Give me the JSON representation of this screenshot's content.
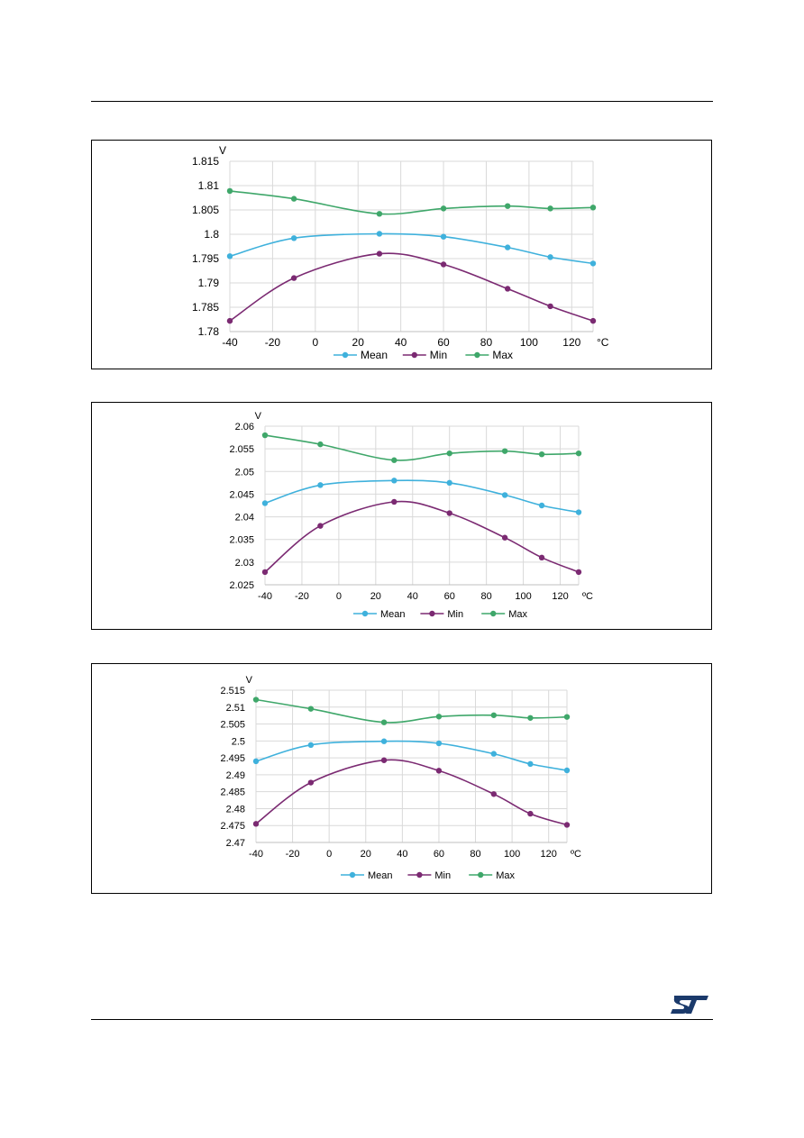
{
  "brand_color": "#1b3a6b",
  "logo_text": "ST",
  "colors": {
    "mean": "#3fb1dc",
    "min": "#7b2a72",
    "max": "#3fa76a",
    "grid": "#d9d9d9"
  },
  "chart_data": [
    {
      "type": "line",
      "ylabel": "V",
      "xlabel": "°C",
      "xlim": [
        -40,
        130
      ],
      "ylim": [
        1.78,
        1.815
      ],
      "xticks": [
        -40,
        -20,
        0,
        20,
        40,
        60,
        80,
        100,
        120
      ],
      "xtick_labels": [
        "-40",
        "-20",
        "0",
        "20",
        "40",
        "60",
        "80",
        "100",
        "120"
      ],
      "yticks": [
        1.78,
        1.785,
        1.79,
        1.795,
        1.8,
        1.805,
        1.81,
        1.815
      ],
      "ytick_labels": [
        "1.78",
        "1.785",
        "1.79",
        "1.795",
        "1.8",
        "1.805",
        "1.81",
        "1.815"
      ],
      "grid": true,
      "legend": "bottom",
      "x": [
        -40,
        -10,
        30,
        60,
        90,
        110,
        130
      ],
      "series": [
        {
          "name": "Mean",
          "values": [
            1.7955,
            1.7992,
            1.8001,
            1.7995,
            1.7973,
            1.7953,
            1.794
          ]
        },
        {
          "name": "Min",
          "values": [
            1.7822,
            1.791,
            1.796,
            1.7938,
            1.7888,
            1.7852,
            1.7822
          ]
        },
        {
          "name": "Max",
          "values": [
            1.8089,
            1.8073,
            1.8042,
            1.8053,
            1.8058,
            1.8053,
            1.8055
          ]
        }
      ]
    },
    {
      "type": "line",
      "ylabel": "V",
      "xlabel": "ºC",
      "xlim": [
        -40,
        130
      ],
      "ylim": [
        2.025,
        2.06
      ],
      "xticks": [
        -40,
        -20,
        0,
        20,
        40,
        60,
        80,
        100,
        120
      ],
      "xtick_labels": [
        "-40",
        "-20",
        "0",
        "20",
        "40",
        "60",
        "80",
        "100",
        "120"
      ],
      "yticks": [
        2.025,
        2.03,
        2.035,
        2.04,
        2.045,
        2.05,
        2.055,
        2.06
      ],
      "ytick_labels": [
        "2.025",
        "2.03",
        "2.035",
        "2.04",
        "2.045",
        "2.05",
        "2.055",
        "2.06"
      ],
      "grid": true,
      "legend": "bottom",
      "x": [
        -40,
        -10,
        30,
        60,
        90,
        110,
        130
      ],
      "series": [
        {
          "name": "Mean",
          "values": [
            2.043,
            2.047,
            2.048,
            2.0475,
            2.0448,
            2.0425,
            2.041
          ]
        },
        {
          "name": "Min",
          "values": [
            2.0278,
            2.038,
            2.0433,
            2.0408,
            2.0354,
            2.031,
            2.0278
          ]
        },
        {
          "name": "Max",
          "values": [
            2.058,
            2.056,
            2.0525,
            2.054,
            2.0545,
            2.0538,
            2.054
          ]
        }
      ]
    },
    {
      "type": "line",
      "ylabel": "V",
      "xlabel": "ºC",
      "xlim": [
        -40,
        130
      ],
      "ylim": [
        2.47,
        2.515
      ],
      "xticks": [
        -40,
        -20,
        0,
        20,
        40,
        60,
        80,
        100,
        120
      ],
      "xtick_labels": [
        "-40",
        "-20",
        "0",
        "20",
        "40",
        "60",
        "80",
        "100",
        "120"
      ],
      "yticks": [
        2.47,
        2.475,
        2.48,
        2.485,
        2.49,
        2.495,
        2.5,
        2.505,
        2.51,
        2.515
      ],
      "ytick_labels": [
        "2.47",
        "2.475",
        "2.48",
        "2.485",
        "2.49",
        "2.495",
        "2.5",
        "2.505",
        "2.51",
        "2.515"
      ],
      "grid": true,
      "legend": "bottom",
      "x": [
        -40,
        -10,
        30,
        60,
        90,
        110,
        130
      ],
      "series": [
        {
          "name": "Mean",
          "values": [
            2.494,
            2.4988,
            2.4999,
            2.4993,
            2.4962,
            2.4932,
            2.4913
          ]
        },
        {
          "name": "Min",
          "values": [
            2.4755,
            2.4877,
            2.4943,
            2.4912,
            2.4843,
            2.4785,
            2.4752
          ]
        },
        {
          "name": "Max",
          "values": [
            2.5122,
            2.5095,
            2.5055,
            2.5072,
            2.5076,
            2.5068,
            2.5071
          ]
        }
      ]
    }
  ]
}
